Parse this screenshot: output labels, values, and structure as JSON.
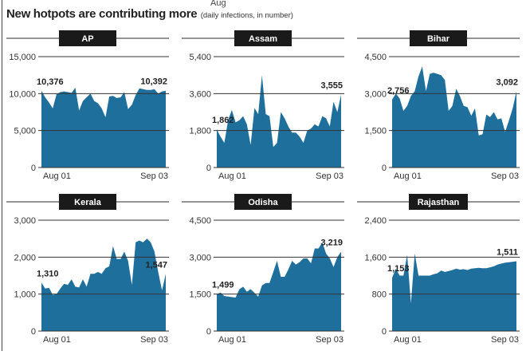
{
  "top_cut_text": "Aug",
  "title": "New hotpots are contributing more",
  "subtitle": "(daily infections, in number)",
  "colors": {
    "fill": "#1f6f9d",
    "pill": "#1a1a1a",
    "grid": "#333333"
  },
  "chart_data": [
    {
      "type": "area",
      "title": "AP",
      "x_labels": [
        "Aug 01",
        "Sep 03"
      ],
      "yticks": [
        "0",
        "5,000",
        "10,000",
        "15,000"
      ],
      "ylim": [
        0,
        15000
      ],
      "annotations": [
        {
          "text": "10,376",
          "at": "start"
        },
        {
          "text": "10,392",
          "at": "end"
        }
      ],
      "values": [
        10376,
        9500,
        8800,
        8000,
        9900,
        10200,
        10300,
        10200,
        10100,
        10800,
        7700,
        9000,
        9500,
        10000,
        9000,
        8700,
        8000,
        6800,
        9600,
        9700,
        9400,
        9500,
        10200,
        7900,
        8500,
        9800,
        10700,
        10600,
        10500,
        10500,
        10600,
        10000,
        10300,
        10392
      ]
    },
    {
      "type": "area",
      "title": "Assam",
      "x_labels": [
        "Aug 01",
        "Sep 03"
      ],
      "yticks": [
        "0",
        "1,800",
        "3,600",
        "5,400"
      ],
      "ylim": [
        0,
        5400
      ],
      "annotations": [
        {
          "text": "1,862",
          "at": "start"
        },
        {
          "text": "3,555",
          "at": "end"
        }
      ],
      "values": [
        1862,
        1500,
        1200,
        2300,
        2800,
        2200,
        2300,
        2500,
        2100,
        1100,
        2900,
        2600,
        4500,
        2600,
        2500,
        1000,
        1200,
        2700,
        2400,
        2000,
        1700,
        1700,
        1500,
        1200,
        1800,
        1900,
        2100,
        2000,
        2500,
        2400,
        2000,
        3200,
        2700,
        3555
      ]
    },
    {
      "type": "area",
      "title": "Bihar",
      "x_labels": [
        "Aug 01",
        "Sep 03"
      ],
      "yticks": [
        "0",
        "1,500",
        "3,000",
        "4,500"
      ],
      "ylim": [
        0,
        4500
      ],
      "annotations": [
        {
          "text": "2,756",
          "at": "start"
        },
        {
          "text": "3,092",
          "at": "end"
        }
      ],
      "values": [
        2756,
        3000,
        2800,
        2300,
        2500,
        2900,
        3100,
        3700,
        4100,
        3100,
        3800,
        3850,
        3800,
        3750,
        3550,
        2300,
        2500,
        3200,
        2900,
        2500,
        2450,
        2100,
        2400,
        1300,
        1350,
        2150,
        2050,
        2250,
        1950,
        2000,
        1450,
        1900,
        2400,
        3092
      ]
    },
    {
      "type": "area",
      "title": "Kerala",
      "x_labels": [
        "Aug 01",
        "Sep 03"
      ],
      "yticks": [
        "0",
        "1,000",
        "2,000",
        "3,000"
      ],
      "ylim": [
        0,
        3000
      ],
      "annotations": [
        {
          "text": "1,310",
          "at": "start"
        },
        {
          "text": "1,547",
          "at": "end"
        }
      ],
      "values": [
        1310,
        1150,
        1170,
        980,
        1000,
        1150,
        1280,
        1250,
        1400,
        1200,
        1180,
        1400,
        1200,
        1550,
        1550,
        1600,
        1550,
        1700,
        1750,
        2300,
        1950,
        1950,
        2150,
        1900,
        1250,
        2400,
        2450,
        2400,
        2500,
        2400,
        2150,
        1600,
        1100,
        1547
      ]
    },
    {
      "type": "area",
      "title": "Odisha",
      "x_labels": [
        "Aug 01",
        "Sep 03"
      ],
      "yticks": [
        "0",
        "1,500",
        "3,000",
        "4,500"
      ],
      "ylim": [
        0,
        4500
      ],
      "annotations": [
        {
          "text": "1,499",
          "at": "start"
        },
        {
          "text": "3,219",
          "at": "end"
        }
      ],
      "values": [
        1499,
        1560,
        1420,
        1400,
        1380,
        1360,
        1700,
        1800,
        1600,
        1700,
        1550,
        1400,
        1850,
        1950,
        1950,
        2400,
        2850,
        2200,
        2200,
        2500,
        2850,
        2700,
        2800,
        2950,
        2950,
        2750,
        3350,
        3350,
        3600,
        3150,
        2950,
        2600,
        3000,
        3219
      ]
    },
    {
      "type": "area",
      "title": "Rajasthan",
      "x_labels": [
        "Aug 01",
        "Sep 03"
      ],
      "yticks": [
        "0",
        "800",
        "1,600",
        "2,400"
      ],
      "ylim": [
        0,
        2400
      ],
      "annotations": [
        {
          "text": "1,153",
          "at": "start"
        },
        {
          "text": "1,511",
          "at": "end"
        }
      ],
      "values": [
        1153,
        1350,
        1200,
        1200,
        1650,
        600,
        1680,
        1200,
        1200,
        1200,
        1200,
        1230,
        1250,
        1310,
        1280,
        1300,
        1320,
        1350,
        1330,
        1340,
        1320,
        1350,
        1360,
        1370,
        1360,
        1360,
        1380,
        1400,
        1440,
        1460,
        1480,
        1490,
        1500,
        1511
      ]
    }
  ]
}
